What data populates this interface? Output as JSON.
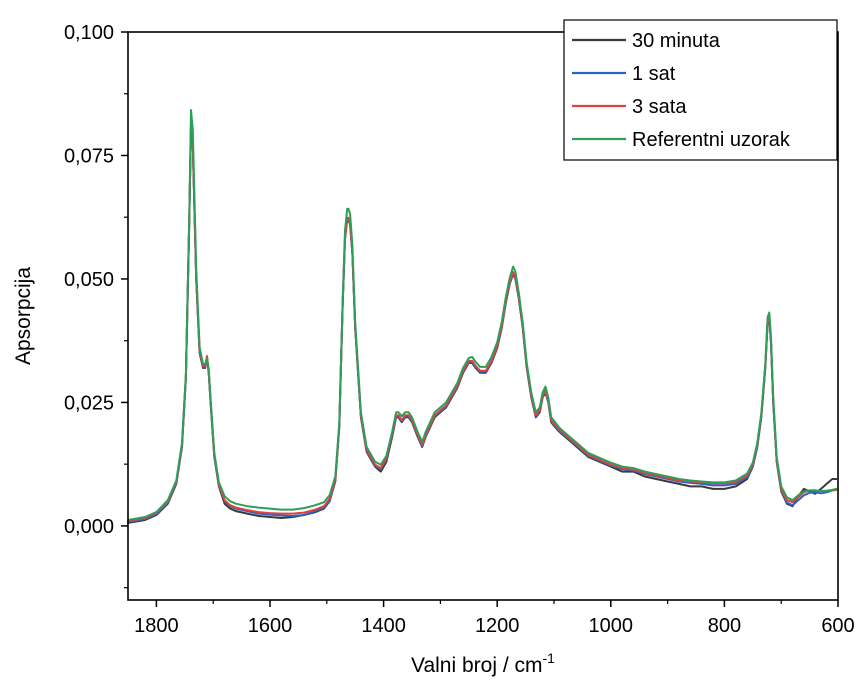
{
  "chart_data": {
    "type": "line",
    "xlabel_main": "Valni broj / cm",
    "xlabel_sup": "-1",
    "ylabel": "Apsorpcija",
    "x_reversed": true,
    "xlim": [
      1850,
      600
    ],
    "ylim": [
      -0.015,
      0.1
    ],
    "x_ticks": [
      {
        "value": 1800,
        "label": "1800"
      },
      {
        "value": 1600,
        "label": "1600"
      },
      {
        "value": 1400,
        "label": "1400"
      },
      {
        "value": 1200,
        "label": "1200"
      },
      {
        "value": 1000,
        "label": "1000"
      },
      {
        "value": 800,
        "label": "800"
      },
      {
        "value": 600,
        "label": "600"
      }
    ],
    "y_ticks": [
      {
        "value": 0.0,
        "label": "0,000"
      },
      {
        "value": 0.025,
        "label": "0,025"
      },
      {
        "value": 0.05,
        "label": "0,050"
      },
      {
        "value": 0.075,
        "label": "0,075"
      },
      {
        "value": 0.1,
        "label": "0,100"
      }
    ],
    "legend_position": "top-right",
    "reference_x": [
      1850,
      1820,
      1800,
      1780,
      1765,
      1755,
      1748,
      1742,
      1739,
      1736,
      1730,
      1724,
      1718,
      1714,
      1711,
      1708,
      1704,
      1698,
      1690,
      1680,
      1670,
      1660,
      1640,
      1620,
      1600,
      1580,
      1560,
      1540,
      1520,
      1505,
      1495,
      1485,
      1478,
      1472,
      1468,
      1464,
      1462,
      1459,
      1455,
      1450,
      1440,
      1430,
      1420,
      1415,
      1405,
      1395,
      1385,
      1378,
      1374,
      1368,
      1362,
      1356,
      1350,
      1340,
      1332,
      1326,
      1318,
      1310,
      1300,
      1290,
      1280,
      1270,
      1260,
      1250,
      1244,
      1238,
      1230,
      1220,
      1210,
      1200,
      1192,
      1185,
      1178,
      1172,
      1168,
      1162,
      1155,
      1148,
      1140,
      1132,
      1125,
      1120,
      1115,
      1110,
      1105,
      1098,
      1090,
      1080,
      1060,
      1040,
      1020,
      1000,
      980,
      960,
      940,
      920,
      900,
      880,
      860,
      840,
      820,
      800,
      780,
      760,
      750,
      742,
      735,
      728,
      724,
      721,
      718,
      714,
      708,
      700,
      690,
      680,
      670,
      660,
      650,
      640,
      630,
      620,
      610,
      603
    ],
    "series": [
      {
        "name": "30 minuta",
        "color": "#3a3a3a",
        "values": [
          0.0006,
          0.0012,
          0.0022,
          0.0045,
          0.0085,
          0.016,
          0.03,
          0.062,
          0.081,
          0.077,
          0.05,
          0.035,
          0.032,
          0.032,
          0.034,
          0.031,
          0.024,
          0.014,
          0.008,
          0.0045,
          0.0035,
          0.003,
          0.0025,
          0.002,
          0.0018,
          0.0016,
          0.0018,
          0.0022,
          0.0028,
          0.0035,
          0.005,
          0.009,
          0.02,
          0.045,
          0.058,
          0.062,
          0.062,
          0.061,
          0.055,
          0.04,
          0.022,
          0.015,
          0.013,
          0.012,
          0.011,
          0.013,
          0.018,
          0.022,
          0.022,
          0.021,
          0.022,
          0.022,
          0.021,
          0.018,
          0.016,
          0.018,
          0.02,
          0.022,
          0.023,
          0.024,
          0.026,
          0.028,
          0.031,
          0.033,
          0.033,
          0.032,
          0.031,
          0.031,
          0.033,
          0.036,
          0.04,
          0.045,
          0.049,
          0.051,
          0.05,
          0.046,
          0.04,
          0.032,
          0.026,
          0.022,
          0.023,
          0.026,
          0.027,
          0.025,
          0.021,
          0.02,
          0.019,
          0.018,
          0.016,
          0.014,
          0.013,
          0.012,
          0.011,
          0.011,
          0.01,
          0.0095,
          0.009,
          0.0085,
          0.008,
          0.008,
          0.0075,
          0.0075,
          0.008,
          0.0095,
          0.012,
          0.016,
          0.022,
          0.032,
          0.041,
          0.042,
          0.037,
          0.025,
          0.013,
          0.007,
          0.0045,
          0.004,
          0.006,
          0.0075,
          0.007,
          0.0065,
          0.0075,
          0.0085,
          0.0095,
          0.0095
        ]
      },
      {
        "name": "1 sat",
        "color": "#2b64c4",
        "values": [
          0.0008,
          0.0014,
          0.0024,
          0.0047,
          0.0087,
          0.0162,
          0.0302,
          0.0622,
          0.0812,
          0.0772,
          0.0502,
          0.0352,
          0.0322,
          0.0322,
          0.0342,
          0.0312,
          0.0242,
          0.0142,
          0.0082,
          0.005,
          0.004,
          0.0035,
          0.003,
          0.0025,
          0.0023,
          0.0021,
          0.002,
          0.0022,
          0.003,
          0.0037,
          0.0052,
          0.0092,
          0.0202,
          0.0452,
          0.0582,
          0.0622,
          0.0622,
          0.0612,
          0.0552,
          0.0402,
          0.0222,
          0.0152,
          0.0132,
          0.0122,
          0.0115,
          0.0135,
          0.0185,
          0.0222,
          0.0222,
          0.0212,
          0.0222,
          0.0222,
          0.0212,
          0.0182,
          0.0162,
          0.0182,
          0.0202,
          0.0222,
          0.0232,
          0.0242,
          0.0262,
          0.0282,
          0.0312,
          0.0332,
          0.0332,
          0.0322,
          0.0312,
          0.0312,
          0.0332,
          0.0362,
          0.0402,
          0.0452,
          0.0492,
          0.0512,
          0.0502,
          0.0462,
          0.0402,
          0.0322,
          0.0262,
          0.0222,
          0.0232,
          0.0262,
          0.0272,
          0.0252,
          0.0212,
          0.0202,
          0.0192,
          0.0182,
          0.0162,
          0.0142,
          0.0132,
          0.0122,
          0.0115,
          0.0112,
          0.0105,
          0.01,
          0.0095,
          0.009,
          0.0087,
          0.0085,
          0.0082,
          0.0082,
          0.0085,
          0.0098,
          0.0122,
          0.0162,
          0.0222,
          0.0322,
          0.0412,
          0.0422,
          0.0372,
          0.0252,
          0.0132,
          0.0072,
          0.0047,
          0.0042,
          0.0052,
          0.0062,
          0.0067,
          0.0068,
          0.0066,
          0.0068,
          0.0072,
          0.0074,
          0.0076
        ]
      },
      {
        "name": "3 sata",
        "color": "#e0413c",
        "values": [
          0.001,
          0.0016,
          0.0026,
          0.0049,
          0.0089,
          0.0164,
          0.0304,
          0.0624,
          0.0814,
          0.0774,
          0.0504,
          0.0354,
          0.0324,
          0.0324,
          0.0344,
          0.0314,
          0.0244,
          0.0144,
          0.0084,
          0.0052,
          0.0042,
          0.0037,
          0.0032,
          0.0028,
          0.0026,
          0.0025,
          0.0025,
          0.0027,
          0.0033,
          0.004,
          0.0055,
          0.0094,
          0.0204,
          0.0454,
          0.0584,
          0.0624,
          0.0624,
          0.0614,
          0.0554,
          0.0404,
          0.0224,
          0.0154,
          0.0134,
          0.0124,
          0.0117,
          0.0137,
          0.0187,
          0.0224,
          0.0224,
          0.0214,
          0.0224,
          0.0224,
          0.0214,
          0.0184,
          0.0164,
          0.0184,
          0.0204,
          0.0224,
          0.0234,
          0.0244,
          0.0264,
          0.0284,
          0.0314,
          0.0334,
          0.0334,
          0.0324,
          0.0314,
          0.0314,
          0.0334,
          0.0364,
          0.0404,
          0.0454,
          0.0494,
          0.0514,
          0.0504,
          0.0464,
          0.0404,
          0.0324,
          0.0264,
          0.0224,
          0.0234,
          0.0264,
          0.0274,
          0.0254,
          0.0214,
          0.0204,
          0.0194,
          0.0184,
          0.0164,
          0.0144,
          0.0134,
          0.0124,
          0.0117,
          0.0114,
          0.0107,
          0.0102,
          0.0097,
          0.0092,
          0.009,
          0.0088,
          0.0086,
          0.0086,
          0.0089,
          0.0102,
          0.0124,
          0.0164,
          0.0224,
          0.0324,
          0.0414,
          0.0424,
          0.0374,
          0.0254,
          0.0134,
          0.0074,
          0.0052,
          0.0048,
          0.0058,
          0.0068,
          0.0072,
          0.0072,
          0.007,
          0.0071,
          0.0072,
          0.0073,
          0.0075
        ]
      },
      {
        "name": "Referentni uzorak",
        "color": "#2e9e58",
        "values": [
          0.0012,
          0.0018,
          0.0028,
          0.0052,
          0.0092,
          0.0168,
          0.0308,
          0.0628,
          0.0842,
          0.0802,
          0.0522,
          0.0362,
          0.0328,
          0.0328,
          0.0338,
          0.0318,
          0.0248,
          0.0148,
          0.0088,
          0.006,
          0.005,
          0.0045,
          0.004,
          0.0037,
          0.0035,
          0.0033,
          0.0033,
          0.0036,
          0.0042,
          0.0048,
          0.0062,
          0.01,
          0.0208,
          0.0458,
          0.0598,
          0.0642,
          0.0642,
          0.0632,
          0.0568,
          0.0412,
          0.023,
          0.016,
          0.014,
          0.013,
          0.0124,
          0.0142,
          0.019,
          0.023,
          0.023,
          0.0222,
          0.023,
          0.023,
          0.022,
          0.019,
          0.017,
          0.019,
          0.021,
          0.023,
          0.024,
          0.025,
          0.027,
          0.029,
          0.032,
          0.034,
          0.0342,
          0.0332,
          0.0322,
          0.0322,
          0.0342,
          0.0372,
          0.0412,
          0.0462,
          0.0502,
          0.0525,
          0.0515,
          0.0472,
          0.041,
          0.033,
          0.027,
          0.023,
          0.024,
          0.027,
          0.0282,
          0.026,
          0.022,
          0.021,
          0.0198,
          0.0188,
          0.0168,
          0.0148,
          0.0138,
          0.0128,
          0.012,
          0.0117,
          0.011,
          0.0105,
          0.01,
          0.0095,
          0.0092,
          0.009,
          0.0088,
          0.0088,
          0.0092,
          0.0106,
          0.0128,
          0.0168,
          0.0228,
          0.0328,
          0.0422,
          0.0432,
          0.0382,
          0.0262,
          0.014,
          0.008,
          0.0058,
          0.0052,
          0.0062,
          0.007,
          0.0072,
          0.0072,
          0.007,
          0.0071,
          0.0073,
          0.0075,
          0.0078
        ]
      }
    ]
  }
}
